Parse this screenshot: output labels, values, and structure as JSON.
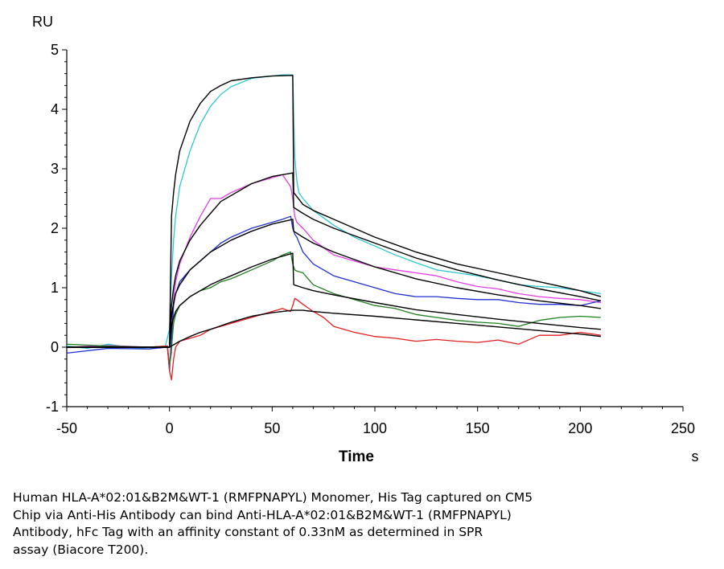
{
  "chart_data": {
    "type": "line",
    "ylabel": "RU",
    "xlabel": "Time",
    "x_unit": "s",
    "xlim": [
      -50,
      250
    ],
    "ylim": [
      -1,
      5
    ],
    "x_ticks": [
      -50,
      0,
      50,
      100,
      150,
      200,
      250
    ],
    "y_ticks": [
      -1,
      0,
      1,
      2,
      3,
      4,
      5
    ],
    "x_tick_labels": [
      "-50",
      "0",
      "50",
      "100",
      "150",
      "200",
      "250"
    ],
    "y_tick_labels": [
      "-1",
      "0",
      "1",
      "2",
      "3",
      "4",
      "5"
    ],
    "grid": false,
    "legend": "none",
    "series": [
      {
        "color": "#2fc6d2",
        "x": [
          -50,
          -40,
          -30,
          -20,
          -10,
          -2,
          0,
          1,
          2,
          3,
          5,
          10,
          15,
          20,
          25,
          30,
          40,
          50,
          55,
          60,
          61,
          62,
          63,
          65,
          70,
          80,
          90,
          100,
          110,
          120,
          130,
          140,
          150,
          160,
          170,
          180,
          190,
          200,
          210
        ],
        "y": [
          0.02,
          -0.02,
          0.05,
          0.0,
          -0.03,
          0.02,
          0.3,
          1.2,
          1.8,
          2.2,
          2.7,
          3.3,
          3.75,
          4.05,
          4.25,
          4.38,
          4.52,
          4.56,
          4.58,
          4.58,
          3.2,
          2.8,
          2.6,
          2.5,
          2.3,
          2.05,
          1.85,
          1.7,
          1.55,
          1.42,
          1.3,
          1.25,
          1.2,
          1.13,
          1.05,
          1.02,
          1.0,
          0.95,
          0.9
        ]
      },
      {
        "color": "#e040e0",
        "x": [
          -50,
          -30,
          -10,
          -1,
          0,
          1,
          2,
          3,
          5,
          10,
          15,
          20,
          25,
          30,
          40,
          50,
          55,
          59,
          60,
          61,
          62,
          65,
          70,
          80,
          90,
          100,
          110,
          120,
          130,
          140,
          150,
          160,
          170,
          180,
          190,
          200,
          210
        ],
        "y": [
          0.0,
          0.03,
          0.0,
          0.02,
          -0.3,
          -0.1,
          0.8,
          1.1,
          1.4,
          1.85,
          2.2,
          2.5,
          2.5,
          2.6,
          2.75,
          2.85,
          2.9,
          2.7,
          2.5,
          2.2,
          2.1,
          2.0,
          1.8,
          1.55,
          1.45,
          1.35,
          1.3,
          1.25,
          1.2,
          1.1,
          1.02,
          0.98,
          0.9,
          0.85,
          0.82,
          0.8,
          0.75
        ]
      },
      {
        "color": "#2030d0",
        "x": [
          -50,
          -30,
          -10,
          -1,
          0,
          1,
          2,
          3,
          5,
          10,
          15,
          20,
          25,
          30,
          40,
          50,
          55,
          59,
          60,
          61,
          62,
          65,
          70,
          80,
          90,
          100,
          110,
          120,
          130,
          140,
          150,
          160,
          170,
          180,
          190,
          200,
          210
        ],
        "y": [
          -0.1,
          -0.02,
          -0.03,
          0.0,
          -0.4,
          0.2,
          0.7,
          0.9,
          1.1,
          1.3,
          1.45,
          1.6,
          1.75,
          1.85,
          2.0,
          2.1,
          2.15,
          2.2,
          2.0,
          1.9,
          1.85,
          1.6,
          1.4,
          1.2,
          1.1,
          1.0,
          0.9,
          0.85,
          0.85,
          0.82,
          0.8,
          0.8,
          0.75,
          0.72,
          0.72,
          0.7,
          0.78
        ]
      },
      {
        "color": "#208020",
        "x": [
          -50,
          -30,
          -10,
          -1,
          0,
          1,
          2,
          3,
          5,
          10,
          15,
          20,
          25,
          30,
          40,
          50,
          55,
          59,
          60,
          61,
          62,
          65,
          70,
          80,
          90,
          100,
          110,
          120,
          130,
          140,
          150,
          160,
          170,
          180,
          190,
          200,
          210
        ],
        "y": [
          0.05,
          0.02,
          0.0,
          0.02,
          -0.3,
          0.0,
          0.4,
          0.55,
          0.7,
          0.85,
          0.95,
          1.0,
          1.1,
          1.15,
          1.3,
          1.45,
          1.55,
          1.6,
          1.4,
          1.3,
          1.28,
          1.25,
          1.05,
          0.9,
          0.8,
          0.7,
          0.65,
          0.55,
          0.5,
          0.45,
          0.42,
          0.4,
          0.35,
          0.45,
          0.5,
          0.52,
          0.5
        ]
      },
      {
        "color": "#e02020",
        "x": [
          -50,
          -30,
          -10,
          -1,
          0,
          1,
          2,
          3,
          5,
          10,
          15,
          20,
          25,
          30,
          40,
          50,
          55,
          59,
          60,
          61,
          62,
          65,
          70,
          75,
          80,
          90,
          100,
          110,
          120,
          130,
          140,
          150,
          160,
          170,
          180,
          190,
          200,
          210
        ],
        "y": [
          0.0,
          0.0,
          0.0,
          0.02,
          -0.4,
          -0.55,
          -0.2,
          0.0,
          0.1,
          0.15,
          0.2,
          0.3,
          0.35,
          0.4,
          0.5,
          0.6,
          0.65,
          0.6,
          0.7,
          0.82,
          0.8,
          0.72,
          0.6,
          0.5,
          0.35,
          0.25,
          0.18,
          0.15,
          0.1,
          0.13,
          0.1,
          0.08,
          0.12,
          0.05,
          0.2,
          0.2,
          0.25,
          0.2
        ]
      },
      {
        "color": "#000000",
        "x": [
          -50,
          0,
          1,
          2,
          3,
          5,
          10,
          15,
          20,
          25,
          30,
          40,
          50,
          60,
          60.5,
          65,
          70,
          80,
          100,
          120,
          140,
          160,
          180,
          200,
          210
        ],
        "y": [
          0.0,
          0.0,
          2.2,
          2.6,
          2.9,
          3.3,
          3.8,
          4.1,
          4.3,
          4.4,
          4.48,
          4.53,
          4.56,
          4.57,
          2.6,
          2.4,
          2.3,
          2.15,
          1.85,
          1.6,
          1.4,
          1.25,
          1.1,
          0.95,
          0.85
        ]
      },
      {
        "color": "#000000",
        "x": [
          -50,
          0,
          1,
          2,
          3,
          5,
          10,
          15,
          20,
          25,
          30,
          40,
          50,
          60,
          60.5,
          65,
          70,
          80,
          100,
          120,
          140,
          160,
          180,
          200,
          210
        ],
        "y": [
          0.0,
          0.0,
          0.7,
          1.0,
          1.2,
          1.45,
          1.8,
          2.05,
          2.25,
          2.45,
          2.55,
          2.75,
          2.87,
          2.93,
          2.35,
          2.25,
          2.15,
          2.0,
          1.75,
          1.5,
          1.3,
          1.13,
          0.98,
          0.85,
          0.78
        ]
      },
      {
        "color": "#000000",
        "x": [
          -50,
          0,
          1,
          2,
          3,
          5,
          10,
          15,
          20,
          25,
          30,
          40,
          50,
          60,
          60.5,
          65,
          70,
          80,
          100,
          120,
          140,
          160,
          180,
          200,
          210
        ],
        "y": [
          0.0,
          0.0,
          0.5,
          0.75,
          0.9,
          1.05,
          1.3,
          1.45,
          1.6,
          1.7,
          1.8,
          1.95,
          2.07,
          2.15,
          1.95,
          1.85,
          1.75,
          1.6,
          1.35,
          1.15,
          1.0,
          0.88,
          0.78,
          0.7,
          0.65
        ]
      },
      {
        "color": "#000000",
        "x": [
          -50,
          0,
          1,
          2,
          3,
          5,
          10,
          15,
          20,
          25,
          30,
          40,
          50,
          60,
          60.5,
          65,
          70,
          80,
          100,
          120,
          140,
          160,
          180,
          200,
          210
        ],
        "y": [
          0.0,
          0.0,
          0.35,
          0.5,
          0.6,
          0.7,
          0.85,
          0.95,
          1.05,
          1.13,
          1.2,
          1.35,
          1.48,
          1.58,
          1.05,
          1.0,
          0.95,
          0.88,
          0.75,
          0.63,
          0.55,
          0.47,
          0.4,
          0.33,
          0.3
        ]
      },
      {
        "color": "#000000",
        "x": [
          -50,
          0,
          5,
          10,
          15,
          20,
          25,
          30,
          40,
          50,
          60,
          65,
          70,
          80,
          100,
          120,
          140,
          160,
          180,
          200,
          210
        ],
        "y": [
          0.0,
          0.0,
          0.1,
          0.18,
          0.25,
          0.3,
          0.36,
          0.42,
          0.52,
          0.58,
          0.62,
          0.62,
          0.6,
          0.57,
          0.52,
          0.46,
          0.4,
          0.34,
          0.28,
          0.22,
          0.18
        ]
      }
    ]
  },
  "caption": "Human HLA-A*02:01&B2M&WT-1 (RMFPNAPYL) Monomer, His Tag captured on CM5\nChip via Anti-His Antibody can bind Anti-HLA-A*02:01&B2M&WT-1 (RMFPNAPYL)\nAntibody, hFc Tag with an affinity constant of 0.33nM as determined in SPR\nassay (Biacore T200)."
}
